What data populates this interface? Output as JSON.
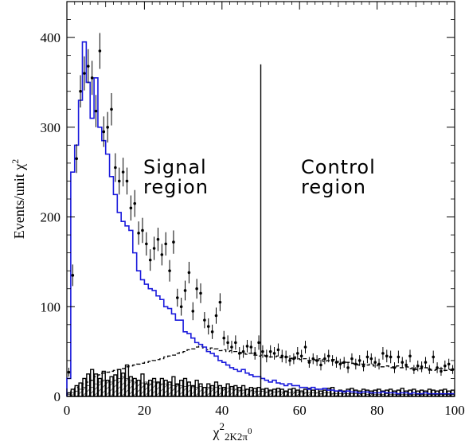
{
  "chart_data": {
    "type": "histogram",
    "xlabel": {
      "main": "χ",
      "sup": "2",
      "sub": "2K2π",
      "subsup": "0"
    },
    "ylabel": {
      "main": "Events/unit χ",
      "sup": "2"
    },
    "xlim": [
      0,
      100
    ],
    "ylim": [
      0,
      440
    ],
    "xticks": [
      0,
      20,
      40,
      60,
      80,
      100
    ],
    "yticks": [
      0,
      100,
      200,
      300,
      400
    ],
    "tick_labels_x": [
      "0",
      "20",
      "40",
      "60",
      "80",
      "100"
    ],
    "tick_labels_y": [
      "0",
      "100",
      "200",
      "300",
      "400"
    ],
    "cut_line": {
      "x": 50,
      "y_top": 370
    },
    "annotations": [
      {
        "key": "signal",
        "lines": [
          "Signal",
          "region"
        ],
        "x": 18,
        "y": 270
      },
      {
        "key": "control",
        "lines": [
          "Control",
          "region"
        ],
        "x": 52,
        "y": 270
      }
    ],
    "series": [
      {
        "key": "data",
        "style": "points",
        "bin_width": 1,
        "x_start": 0,
        "values": [
          27,
          135,
          265,
          340,
          360,
          368,
          355,
          318,
          385,
          295,
          300,
          320,
          255,
          240,
          250,
          240,
          210,
          215,
          182,
          185,
          170,
          152,
          165,
          175,
          158,
          170,
          140,
          172,
          110,
          100,
          118,
          138,
          95,
          120,
          115,
          85,
          78,
          72,
          90,
          105,
          65,
          60,
          55,
          60,
          48,
          50,
          56,
          55,
          48,
          60,
          50,
          45,
          50,
          48,
          52,
          45,
          44,
          40,
          42,
          48,
          45,
          55,
          38,
          42,
          40,
          35,
          42,
          45,
          40,
          38,
          36,
          38,
          32,
          42,
          36,
          40,
          34,
          44,
          42,
          38,
          36,
          48,
          45,
          44,
          32,
          44,
          38,
          35,
          45,
          30,
          34,
          33,
          38,
          30,
          44,
          32,
          28,
          34,
          36,
          30
        ],
        "errors": [
          5,
          12,
          16,
          18,
          19,
          19,
          19,
          18,
          20,
          17,
          17,
          18,
          16,
          15,
          16,
          15,
          14,
          15,
          13,
          14,
          13,
          12,
          13,
          13,
          12,
          13,
          12,
          13,
          10,
          10,
          11,
          12,
          10,
          11,
          11,
          9,
          9,
          8,
          9,
          10,
          8,
          8,
          7,
          8,
          7,
          7,
          7,
          7,
          7,
          8,
          7,
          7,
          7,
          7,
          7,
          7,
          7,
          6,
          6,
          7,
          7,
          7,
          6,
          6,
          6,
          6,
          6,
          7,
          6,
          6,
          6,
          6,
          6,
          6,
          6,
          6,
          6,
          7,
          6,
          6,
          6,
          7,
          7,
          7,
          6,
          7,
          6,
          6,
          7,
          5,
          6,
          6,
          6,
          5,
          7,
          6,
          5,
          6,
          6,
          5
        ]
      },
      {
        "key": "mc_signal",
        "style": "step",
        "color": "#1a1adc",
        "bin_width": 1,
        "x_start": 0,
        "values": [
          20,
          250,
          280,
          330,
          395,
          350,
          310,
          355,
          300,
          285,
          270,
          245,
          225,
          205,
          195,
          190,
          185,
          160,
          140,
          130,
          125,
          120,
          118,
          112,
          108,
          100,
          98,
          92,
          85,
          85,
          72,
          70,
          65,
          60,
          58,
          55,
          50,
          48,
          45,
          40,
          38,
          35,
          32,
          30,
          28,
          30,
          26,
          24,
          22,
          22,
          20,
          18,
          16,
          18,
          15,
          14,
          12,
          14,
          12,
          12,
          10,
          10,
          8,
          10,
          8,
          8,
          9,
          7,
          7,
          6,
          6,
          5,
          6,
          5,
          5,
          4,
          5,
          5,
          4,
          4,
          4,
          5,
          4,
          4,
          4,
          3,
          4,
          4,
          3,
          4,
          3,
          3,
          4,
          3,
          3,
          3,
          3,
          3,
          3,
          3
        ]
      },
      {
        "key": "background_dashed",
        "style": "step-dashed",
        "color": "#000000",
        "bin_width": 1,
        "x_start": 0,
        "values": [
          3,
          6,
          10,
          12,
          14,
          16,
          18,
          22,
          24,
          26,
          27,
          28,
          29,
          30,
          31,
          33,
          34,
          35,
          36,
          37,
          38,
          39,
          40,
          41,
          42,
          44,
          45,
          46,
          48,
          49,
          50,
          52,
          53,
          55,
          56,
          54,
          52,
          54,
          53,
          51,
          52,
          50,
          51,
          50,
          49,
          48,
          47,
          48,
          46,
          45,
          46,
          45,
          44,
          44,
          45,
          43,
          44,
          42,
          44,
          42,
          41,
          42,
          40,
          41,
          40,
          42,
          39,
          40,
          41,
          39,
          38,
          37,
          38,
          37,
          36,
          35,
          36,
          35,
          36,
          34,
          35,
          33,
          34,
          32,
          33,
          34,
          32,
          33,
          31,
          32,
          30,
          31,
          32,
          30,
          29,
          30,
          31,
          29,
          30,
          29
        ]
      },
      {
        "key": "background_hatched",
        "style": "hatched",
        "color": "#000000",
        "bin_width": 1,
        "x_start": 0,
        "values": [
          2,
          4,
          6,
          8,
          10,
          12,
          10,
          14,
          16,
          18,
          18,
          16,
          18,
          20,
          22,
          20,
          18,
          16,
          18,
          15,
          16,
          14,
          16,
          15,
          14,
          14,
          13,
          12,
          13,
          12,
          11,
          12,
          11,
          10,
          11,
          10,
          10,
          9,
          10,
          9,
          8,
          9,
          8,
          8,
          7,
          7,
          8,
          7,
          6,
          6,
          6,
          5,
          6,
          5,
          6,
          5,
          5,
          4,
          5,
          5,
          4,
          4,
          4,
          4,
          4,
          3,
          4,
          4,
          3,
          3,
          3,
          3,
          3,
          3,
          3,
          3,
          3,
          2,
          3,
          2,
          2,
          2,
          3,
          2,
          2,
          2,
          2,
          2,
          2,
          2,
          2,
          2,
          2,
          2,
          2,
          2,
          2,
          2,
          2,
          2
        ]
      },
      {
        "key": "background_boxes",
        "style": "step-boxes",
        "color": "#000000",
        "bin_width": 1,
        "x_start": 0,
        "values": [
          4,
          8,
          12,
          15,
          20,
          25,
          30,
          25,
          20,
          28,
          18,
          22,
          24,
          30,
          26,
          35,
          22,
          20,
          18,
          25,
          14,
          18,
          20,
          16,
          20,
          18,
          16,
          22,
          14,
          18,
          20,
          16,
          12,
          18,
          14,
          10,
          14,
          12,
          16,
          12,
          10,
          14,
          11,
          12,
          10,
          12,
          8,
          10,
          9,
          10,
          8,
          9,
          7,
          8,
          9,
          8,
          6,
          8,
          9,
          7,
          6,
          8,
          9,
          7,
          8,
          6,
          7,
          9,
          10,
          6,
          7,
          6,
          8,
          9,
          7,
          6,
          8,
          7,
          6,
          7,
          8,
          6,
          7,
          8,
          6,
          7,
          9,
          6,
          7,
          8,
          6,
          7,
          6,
          8,
          7,
          6,
          7,
          8,
          6,
          7
        ]
      }
    ]
  }
}
